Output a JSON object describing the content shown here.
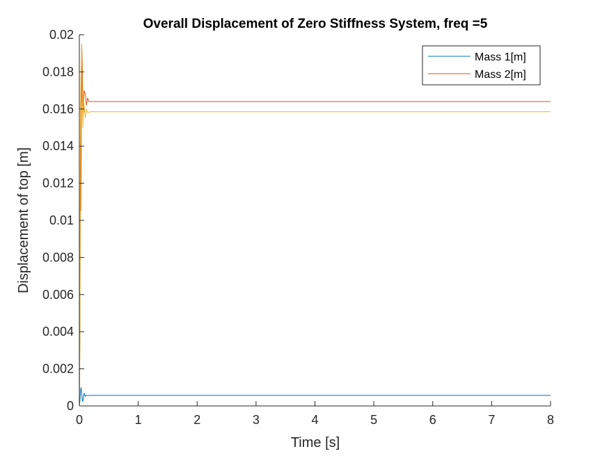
{
  "chart_data": {
    "type": "line",
    "title": "Overall Displacement of Zero Stiffness System, freq =5",
    "xlabel": "Time [s]",
    "ylabel": "Displacement of top [m]",
    "xlim": [
      0,
      8
    ],
    "ylim": [
      0,
      0.02
    ],
    "xticks": [
      "0",
      "1",
      "2",
      "3",
      "4",
      "5",
      "6",
      "7",
      "8"
    ],
    "yticks": [
      "0",
      "0.002",
      "0.004",
      "0.006",
      "0.008",
      "0.01",
      "0.012",
      "0.014",
      "0.016",
      "0.018",
      "0.02"
    ],
    "grid": false,
    "legend_position": "top-right",
    "series": [
      {
        "name": "Mass 1[m]",
        "color": "#0072bd",
        "x": [
          0,
          0.01,
          0.02,
          0.03,
          0.04,
          0.05,
          0.06,
          0.07,
          0.08,
          0.09,
          0.1,
          0.12,
          0.14,
          0.2,
          8
        ],
        "y": [
          0,
          0.0003,
          0.0008,
          0.001,
          0.0007,
          0.0003,
          0.00025,
          0.0005,
          0.0007,
          0.0006,
          0.00052,
          0.00058,
          0.00056,
          0.00057,
          0.00057
        ]
      },
      {
        "name": "Mass 2[m]",
        "color": "#d95319",
        "x": [
          0,
          0.01,
          0.015,
          0.02,
          0.025,
          0.03,
          0.04,
          0.05,
          0.06,
          0.07,
          0.08,
          0.1,
          0.12,
          0.14,
          0.16,
          0.2,
          8
        ],
        "y": [
          0,
          0.004,
          0.01,
          0.014,
          0.0105,
          0.013,
          0.0195,
          0.0185,
          0.0162,
          0.0158,
          0.017,
          0.0168,
          0.0162,
          0.0166,
          0.0164,
          0.0164,
          0.0164
        ]
      },
      {
        "name": "",
        "color": "#edb120",
        "x": [
          0,
          0.01,
          0.015,
          0.02,
          0.03,
          0.04,
          0.05,
          0.06,
          0.07,
          0.08,
          0.1,
          0.12,
          0.14,
          0.18,
          8
        ],
        "y": [
          0,
          0.0035,
          0.0105,
          0.016,
          0.018,
          0.0195,
          0.0165,
          0.015,
          0.0168,
          0.0162,
          0.0155,
          0.016,
          0.0158,
          0.01585,
          0.01585
        ]
      }
    ]
  }
}
